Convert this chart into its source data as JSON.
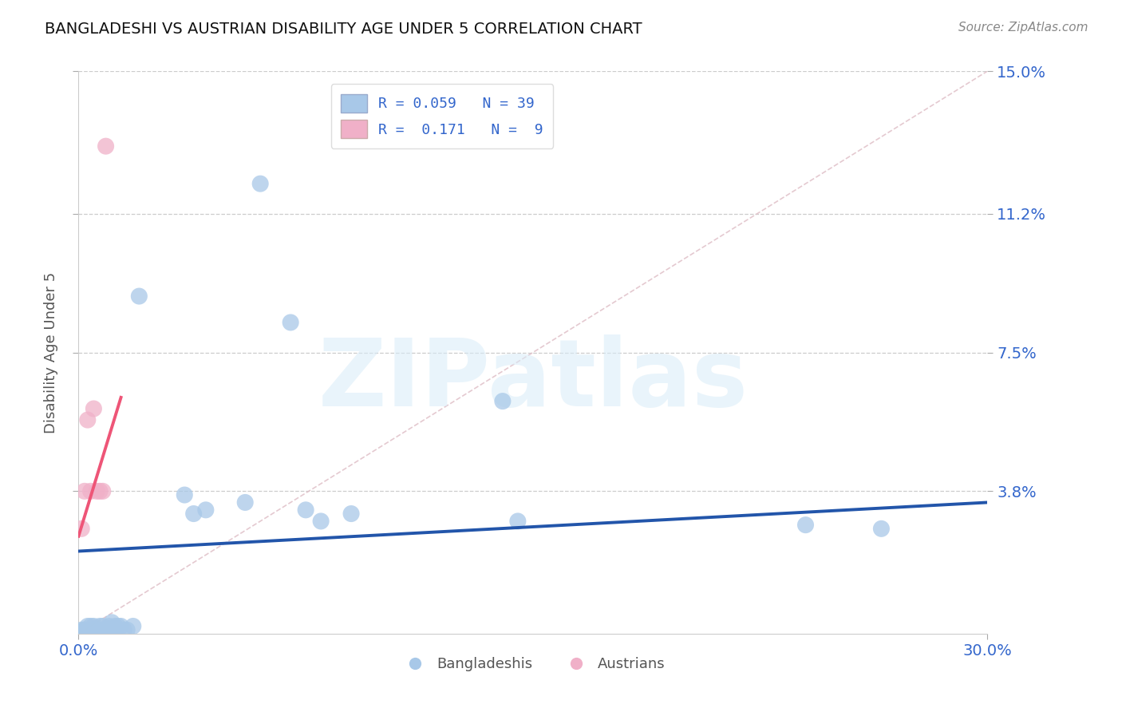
{
  "title": "BANGLADESHI VS AUSTRIAN DISABILITY AGE UNDER 5 CORRELATION CHART",
  "source": "Source: ZipAtlas.com",
  "ylabel": "Disability Age Under 5",
  "xlim": [
    0.0,
    0.3
  ],
  "ylim": [
    0.0,
    0.15
  ],
  "ytick_vals": [
    0.038,
    0.075,
    0.112,
    0.15
  ],
  "ytick_labels": [
    "3.8%",
    "7.5%",
    "11.2%",
    "15.0%"
  ],
  "grid_color": "#cccccc",
  "bangladeshi_color": "#a8c8e8",
  "austrian_color": "#f0b0c8",
  "bangladeshi_line_color": "#2255aa",
  "austrian_line_color": "#ee5577",
  "diag_line_color": "#e0c0c8",
  "title_color": "#111111",
  "ytick_color": "#3366cc",
  "xtick_color": "#3366cc",
  "legend_bd_label": "R = 0.059   N = 39",
  "legend_au_label": "R =  0.171   N =  9",
  "legend_bangladeshis": "Bangladeshis",
  "legend_austrians": "Austrians",
  "watermark": "ZIPatlas",
  "bd_x": [
    0.001,
    0.002,
    0.002,
    0.003,
    0.003,
    0.004,
    0.004,
    0.005,
    0.005,
    0.006,
    0.006,
    0.007,
    0.008,
    0.008,
    0.009,
    0.01,
    0.01,
    0.011,
    0.012,
    0.012,
    0.013,
    0.014,
    0.015,
    0.016,
    0.018,
    0.02,
    0.035,
    0.038,
    0.042,
    0.055,
    0.06,
    0.07,
    0.075,
    0.08,
    0.09,
    0.14,
    0.145,
    0.24,
    0.265
  ],
  "bd_y": [
    0.001,
    0.001,
    0.001,
    0.001,
    0.002,
    0.001,
    0.002,
    0.001,
    0.002,
    0.001,
    0.001,
    0.002,
    0.001,
    0.002,
    0.001,
    0.002,
    0.001,
    0.003,
    0.002,
    0.001,
    0.002,
    0.002,
    0.001,
    0.001,
    0.002,
    0.09,
    0.037,
    0.032,
    0.033,
    0.035,
    0.12,
    0.083,
    0.033,
    0.03,
    0.032,
    0.062,
    0.03,
    0.029,
    0.028
  ],
  "au_x": [
    0.001,
    0.002,
    0.003,
    0.004,
    0.005,
    0.006,
    0.007,
    0.008,
    0.009
  ],
  "au_y": [
    0.028,
    0.038,
    0.057,
    0.038,
    0.06,
    0.038,
    0.038,
    0.038,
    0.13
  ],
  "bd_line_x": [
    0.0,
    0.3
  ],
  "bd_line_y": [
    0.022,
    0.035
  ],
  "au_line_x": [
    0.0,
    0.014
  ],
  "au_line_y": [
    0.026,
    0.063
  ]
}
